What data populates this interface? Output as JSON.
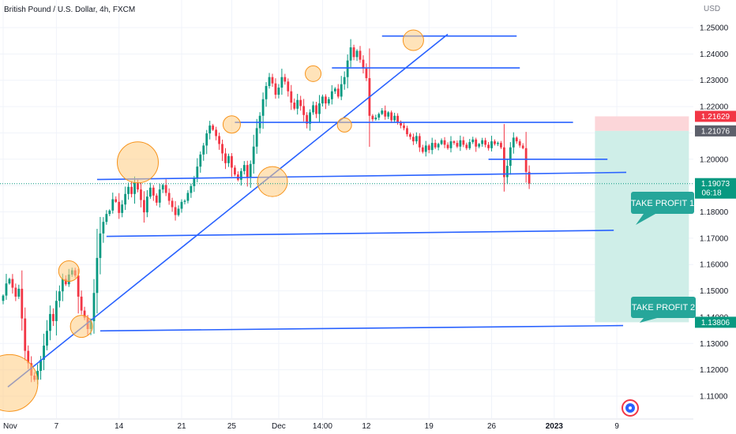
{
  "header": {
    "symbol_title": "British Pound / U.S. Dollar, 4h, FXCM"
  },
  "price_axis": {
    "currency": "USD",
    "ticks": [
      1.25,
      1.24,
      1.23,
      1.22,
      1.21,
      1.2,
      1.19,
      1.18,
      1.17,
      1.16,
      1.15,
      1.14,
      1.13,
      1.12,
      1.11
    ],
    "tick_labels": [
      "1.25000",
      "1.24000",
      "1.23000",
      "1.22000",
      "1.21000",
      "1.20000",
      "1.19000",
      "1.18000",
      "1.17000",
      "1.16000",
      "1.15000",
      "1.14000",
      "1.13000",
      "1.12000",
      "1.11000"
    ]
  },
  "time_axis": {
    "labels": [
      {
        "text": "Nov",
        "i": 0
      },
      {
        "text": "7",
        "i": 17
      },
      {
        "text": "14",
        "i": 37
      },
      {
        "text": "21",
        "i": 57
      },
      {
        "text": "25",
        "i": 73
      },
      {
        "text": "Dec",
        "i": 88
      },
      {
        "text": "14:00",
        "i": 102
      },
      {
        "text": "12",
        "i": 116
      },
      {
        "text": "19",
        "i": 136
      },
      {
        "text": "26",
        "i": 156
      },
      {
        "text": "2023",
        "i": 176
      },
      {
        "text": "9",
        "i": 196
      }
    ]
  },
  "badges": {
    "stop": {
      "value": "1.21629",
      "price": 1.21629,
      "color": "#f23645"
    },
    "entry": {
      "value": "1.21076",
      "price": 1.21076,
      "color": "#5d606b"
    },
    "current": {
      "value": "1.19073",
      "countdown": "06:18",
      "price": 1.19073,
      "color": "#089981"
    },
    "target": {
      "value": "1.13806",
      "price": 1.13806,
      "color": "#089981"
    }
  },
  "callouts": {
    "take_profit_1": "TAKE PROFIT 1",
    "take_profit_2": "TAKE PROFIT 2"
  },
  "colors": {
    "up": "#089981",
    "down": "#f23645",
    "trendline": "#2962ff",
    "highlight_fill": "#ffcc80",
    "highlight_stroke": "#f7931a",
    "target_zone": "#cfeee8",
    "stop_zone": "#fcd6d9"
  },
  "chart_data": {
    "type": "candlestick",
    "title": "British Pound / U.S. Dollar, 4h, FXCM",
    "ylim": [
      1.103,
      1.256
    ],
    "close": [
      1.1482,
      1.1528,
      1.1545,
      1.1512,
      1.1478,
      1.1508,
      1.1395,
      1.1272,
      1.1225,
      1.1178,
      1.1162,
      1.1196,
      1.1238,
      1.1292,
      1.1348,
      1.1412,
      1.1385,
      1.1462,
      1.1498,
      1.1545,
      1.1525,
      1.1562,
      1.1578,
      1.1558,
      1.1478,
      1.1425,
      1.1398,
      1.1355,
      1.1385,
      1.1492,
      1.1625,
      1.1718,
      1.1762,
      1.1792,
      1.1805,
      1.1848,
      1.1838,
      1.1796,
      1.1828,
      1.1868,
      1.1895,
      1.1868,
      1.1912,
      1.1885,
      1.1845,
      1.1798,
      1.1858,
      1.1892,
      1.1862,
      1.1835,
      1.1885,
      1.1902,
      1.1872,
      1.1842,
      1.1818,
      1.1788,
      1.1812,
      1.1838,
      1.1842,
      1.1872,
      1.1898,
      1.1928,
      1.1972,
      1.2018,
      1.2052,
      1.2098,
      1.2128,
      1.2112,
      1.2088,
      1.2058,
      1.2022,
      1.1985,
      1.2012,
      1.1968,
      1.1942,
      1.1922,
      1.1955,
      1.1978,
      1.1932,
      1.1982,
      1.2048,
      1.2118,
      1.2165,
      1.2228,
      1.2278,
      1.2312,
      1.2288,
      1.2245,
      1.2272,
      1.2312,
      1.2295,
      1.2258,
      1.2215,
      1.2192,
      1.2225,
      1.2202,
      1.2168,
      1.2135,
      1.2178,
      1.2205,
      1.2172,
      1.2212,
      1.2238,
      1.2212,
      1.2228,
      1.2258,
      1.2268,
      1.2238,
      1.2285,
      1.2312,
      1.2375,
      1.2425,
      1.2388,
      1.2412,
      1.2378,
      1.2345,
      1.2308,
      1.2165,
      1.2152,
      1.2158,
      1.2172,
      1.2185,
      1.2162,
      1.2178,
      1.2148,
      1.2165,
      1.2142,
      1.2128,
      1.2118,
      1.2095,
      1.2085,
      1.2068,
      1.2088,
      1.2045,
      1.2028,
      1.2052,
      1.2035,
      1.2062,
      1.2045,
      1.2058,
      1.2072,
      1.2055,
      1.2042,
      1.2068,
      1.2062,
      1.2048,
      1.2072,
      1.2055,
      1.2042,
      1.2065,
      1.2075,
      1.2048,
      1.2058,
      1.2072,
      1.2055,
      1.2042,
      1.2068,
      1.2058,
      1.2062,
      1.2045,
      1.1932,
      1.1975,
      1.2045,
      1.2082,
      1.2068,
      1.2052,
      1.2042,
      1.1952,
      1.1907
    ],
    "annotations": {
      "trendlines": [
        {
          "from": [
            1.5,
            1.1135
          ],
          "to": [
            142,
            1.2475
          ]
        },
        {
          "from": [
            121,
            1.2468
          ],
          "to": [
            164,
            1.2468
          ]
        },
        {
          "from": [
            105,
            1.2347
          ],
          "to": [
            165,
            1.2347
          ]
        },
        {
          "from": [
            74,
            1.214
          ],
          "to": [
            182,
            1.214
          ]
        },
        {
          "from": [
            155,
            1.2
          ],
          "to": [
            193,
            1.2
          ]
        },
        {
          "from": [
            30,
            1.1923
          ],
          "to": [
            199,
            1.195
          ]
        },
        {
          "from": [
            33,
            1.1707
          ],
          "to": [
            195,
            1.173
          ]
        },
        {
          "from": [
            31,
            1.1348
          ],
          "to": [
            198,
            1.1368
          ]
        }
      ],
      "highlights": [
        {
          "i": 2,
          "price": 1.115,
          "r": 36
        },
        {
          "i": 21,
          "price": 1.1575,
          "r": 13
        },
        {
          "i": 25,
          "price": 1.1365,
          "r": 14
        },
        {
          "i": 43,
          "price": 1.1988,
          "r": 26
        },
        {
          "i": 73,
          "price": 1.2132,
          "r": 11
        },
        {
          "i": 86,
          "price": 1.1915,
          "r": 19
        },
        {
          "i": 99,
          "price": 1.2325,
          "r": 10
        },
        {
          "i": 109,
          "price": 1.213,
          "r": 9
        },
        {
          "i": 131,
          "price": 1.2452,
          "r": 13
        }
      ],
      "position": {
        "from_i": 189,
        "to_i": 219,
        "entry": 1.21076,
        "stop": 1.21629,
        "target": 1.13806
      }
    }
  }
}
